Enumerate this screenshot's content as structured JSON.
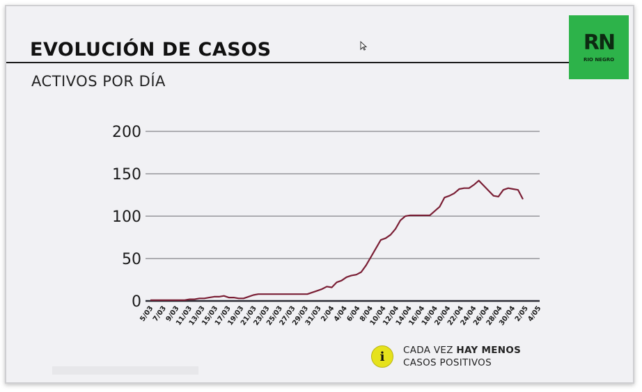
{
  "header": {
    "title": "EVOLUCIÓN DE CASOS",
    "subtitle": "ACTIVOS POR DÍA"
  },
  "logo": {
    "mark": "RN",
    "sub": "RIO NEGRO",
    "color": "#2db34a"
  },
  "note": {
    "icon": "info-icon",
    "icon_glyph": "i",
    "line1_pre": "CADA VEZ ",
    "line1_bold": "HAY MENOS",
    "line2": "CASOS POSITIVOS"
  },
  "colors": {
    "line": "#7a1e34",
    "grid": "#3a3a40"
  },
  "chart_data": {
    "type": "line",
    "title": "",
    "xlabel": "",
    "ylabel": "",
    "ylim": [
      0,
      200
    ],
    "yticks": [
      0,
      50,
      100,
      150,
      200
    ],
    "grid": true,
    "x_tick_labels": [
      "5/03",
      "7/03",
      "9/03",
      "11/03",
      "13/03",
      "15/03",
      "17/03",
      "19/03",
      "21/03",
      "23/03",
      "25/03",
      "27/03",
      "29/03",
      "31/03",
      "2/04",
      "4/04",
      "6/04",
      "8/04",
      "10/04",
      "12/04",
      "14/04",
      "16/04",
      "18/04",
      "20/04",
      "22/04",
      "24/04",
      "26/04",
      "28/04",
      "30/04",
      "2/05",
      "4/05"
    ],
    "series": [
      {
        "values": [
          1,
          1,
          1,
          1,
          1,
          1,
          1,
          1,
          2,
          2,
          3,
          3,
          4,
          5,
          5,
          6,
          4,
          4,
          3,
          3,
          5,
          7,
          8,
          8,
          8,
          8,
          8,
          8,
          8,
          8,
          8,
          8,
          8,
          10,
          12,
          14,
          17,
          16,
          22,
          24,
          28,
          30,
          31,
          34,
          42,
          52,
          62,
          72,
          74,
          78,
          85,
          95,
          100,
          101,
          101,
          101,
          101,
          101,
          106,
          111,
          122,
          124,
          127,
          132,
          133,
          133,
          137,
          142,
          136,
          130,
          124,
          123,
          131,
          133,
          132,
          131,
          120
        ]
      }
    ]
  }
}
